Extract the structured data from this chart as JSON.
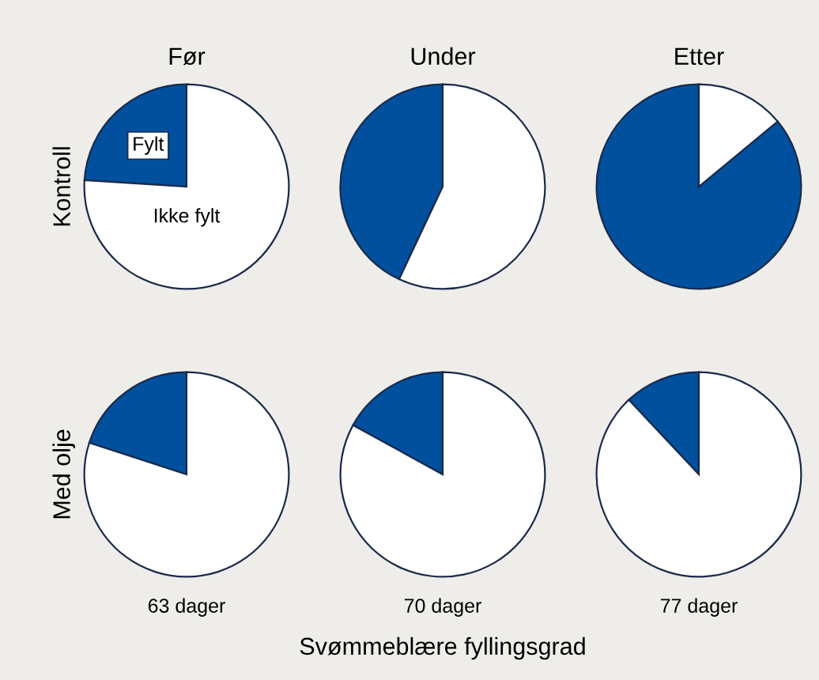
{
  "chart_data": [
    {
      "type": "pie",
      "title": "Før",
      "ylabel": "Kontroll",
      "categories": [
        "Fylt",
        "Ikke fylt"
      ],
      "values": [
        24,
        76
      ],
      "colors": [
        "#00509e",
        "#ffffff"
      ]
    },
    {
      "type": "pie",
      "title": "Under",
      "categories": [
        null,
        null
      ],
      "values": [
        43,
        57
      ],
      "colors": [
        "#00509e",
        "#ffffff"
      ]
    },
    {
      "type": "pie",
      "title": "Etter",
      "categories": [
        null,
        null
      ],
      "values": [
        86,
        14
      ],
      "colors": [
        "#00509e",
        "#ffffff"
      ]
    },
    {
      "type": "pie",
      "ylabel": "Med olje",
      "xlabel": "63 dager",
      "categories": [
        null,
        null
      ],
      "values": [
        20,
        80
      ],
      "colors": [
        "#00509e",
        "#ffffff"
      ]
    },
    {
      "type": "pie",
      "xlabel": "70 dager",
      "annotations": [
        "Svømmeblære fyllingsgrad"
      ],
      "categories": [
        null,
        null
      ],
      "values": [
        17,
        83
      ],
      "colors": [
        "#00509e",
        "#ffffff"
      ]
    },
    {
      "type": "pie",
      "xlabel": "77 dager",
      "categories": [
        null,
        null
      ],
      "values": [
        12,
        88
      ],
      "colors": [
        "#00509e",
        "#ffffff"
      ]
    }
  ]
}
